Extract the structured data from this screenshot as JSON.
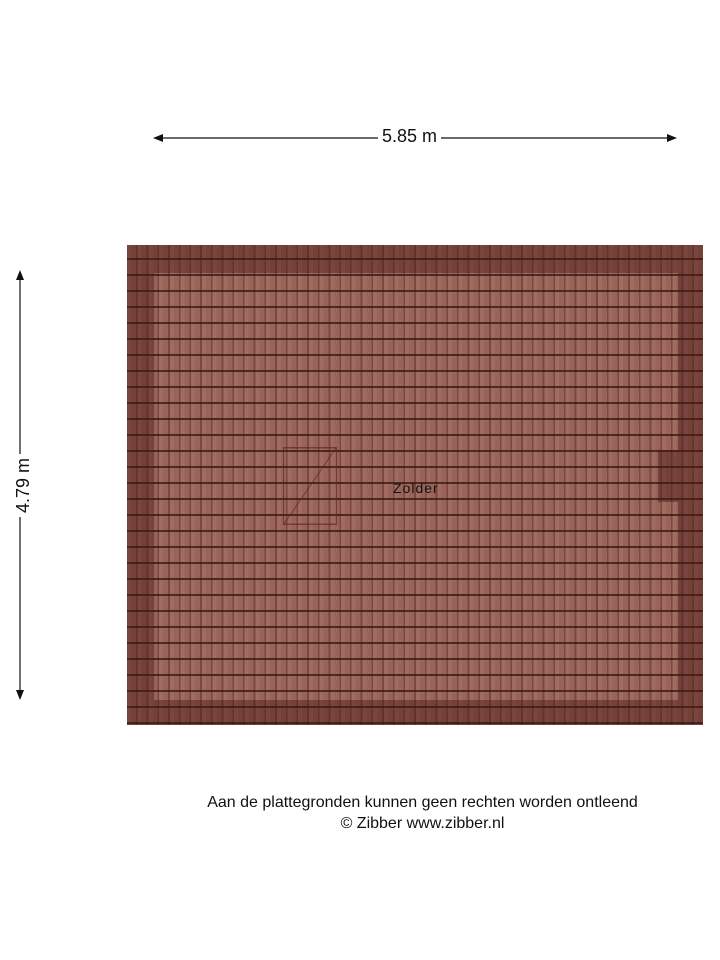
{
  "dimensions": {
    "width": "5.85 m",
    "height": "4.79 m"
  },
  "rooms": [
    {
      "label": "Zolder"
    }
  ],
  "colors": {
    "roof_tile": "#9a6357",
    "roof_edge": "#6e3a30"
  },
  "footer": {
    "disclaimer": "Aan de plattegronden kunnen geen rechten worden ontleend",
    "copyright": "© Zibber www.zibber.nl"
  }
}
